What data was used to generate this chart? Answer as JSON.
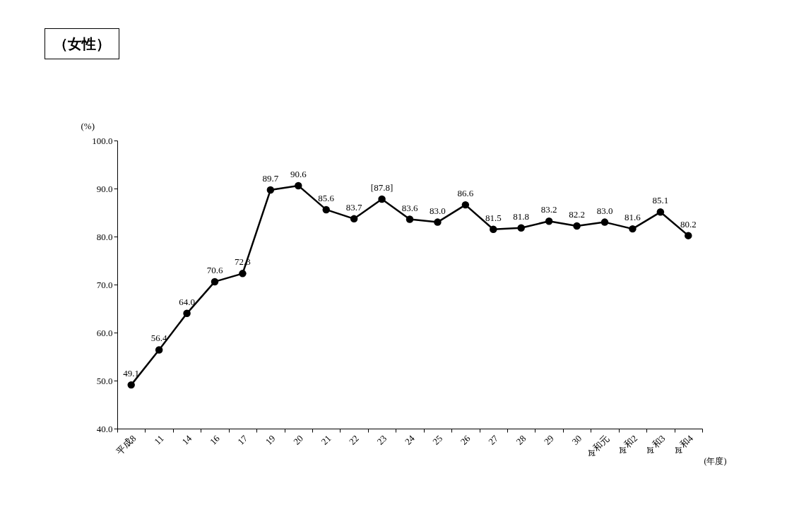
{
  "chart_data": {
    "type": "line",
    "title": "（女性）",
    "ylabel": "(%)",
    "xlabel": "(年度)",
    "categories": [
      "平成8",
      "11",
      "14",
      "16",
      "17",
      "19",
      "20",
      "21",
      "22",
      "23",
      "24",
      "25",
      "26",
      "27",
      "28",
      "29",
      "30",
      "令和元",
      "令和2",
      "令和3",
      "令和4"
    ],
    "series": [
      {
        "color": "#000000",
        "values": [
          49.1,
          56.4,
          64.0,
          70.6,
          72.3,
          89.7,
          90.6,
          85.6,
          83.7,
          87.8,
          83.6,
          83.0,
          86.6,
          81.5,
          81.8,
          83.2,
          82.2,
          83.0,
          81.6,
          85.1,
          80.2
        ],
        "value_labels": [
          "49.1",
          "56.4",
          "64.0",
          "70.6",
          "72.3",
          "89.7",
          "90.6",
          "85.6",
          "83.7",
          "[87.8]",
          "83.6",
          "83.0",
          "86.6",
          "81.5",
          "81.8",
          "83.2",
          "82.2",
          "83.0",
          "81.6",
          "85.1",
          "80.2"
        ]
      }
    ],
    "ylim": [
      40,
      100
    ],
    "yticks": [
      {
        "value": 40,
        "label": "40.0"
      },
      {
        "value": 50,
        "label": "50.0"
      },
      {
        "value": 60,
        "label": "60.0"
      },
      {
        "value": 70,
        "label": "70.0"
      },
      {
        "value": 80,
        "label": "80.0"
      },
      {
        "value": 90,
        "label": "90.0"
      },
      {
        "value": 100,
        "label": "100.0"
      }
    ],
    "grid": false,
    "marker": "circle",
    "line_style": "solid"
  }
}
